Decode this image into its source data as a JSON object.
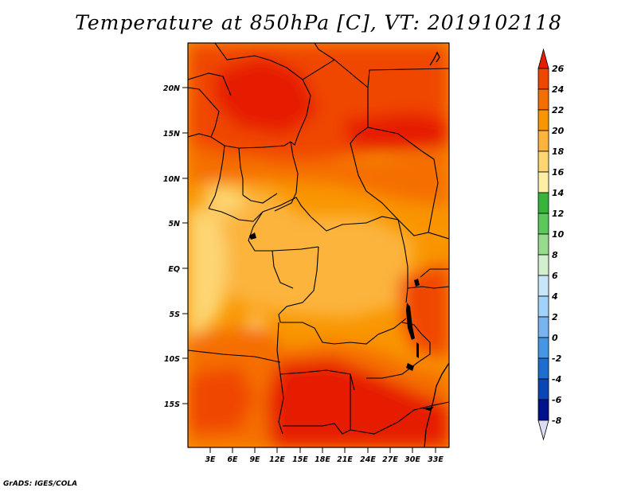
{
  "title": "Temperature at 850hPa [C], VT: 2019102118",
  "credit": "GrADS: IGES/COLA",
  "lat_labels": [
    "20N",
    "15N",
    "10N",
    "5N",
    "EQ",
    "5S",
    "10S",
    "15S"
  ],
  "lon_labels": [
    "3E",
    "6E",
    "9E",
    "12E",
    "15E",
    "18E",
    "21E",
    "24E",
    "27E",
    "30E",
    "33E"
  ],
  "colorbar": {
    "levels": [
      "26",
      "24",
      "22",
      "20",
      "18",
      "16",
      "14",
      "12",
      "10",
      "8",
      "6",
      "4",
      "2",
      "0",
      "-2",
      "-4",
      "-6",
      "-8"
    ],
    "colors": [
      "#e61e00",
      "#f04600",
      "#f56e00",
      "#f99500",
      "#fcb43c",
      "#fdd673",
      "#fdf0a6",
      "#37b43c",
      "#5ac85a",
      "#96dc8c",
      "#d2f0cd",
      "#c8e6fa",
      "#a0d2fa",
      "#78b4f0",
      "#4696e6",
      "#1e6ed2",
      "#0a46b4",
      "#00128c",
      "#000068"
    ]
  }
}
